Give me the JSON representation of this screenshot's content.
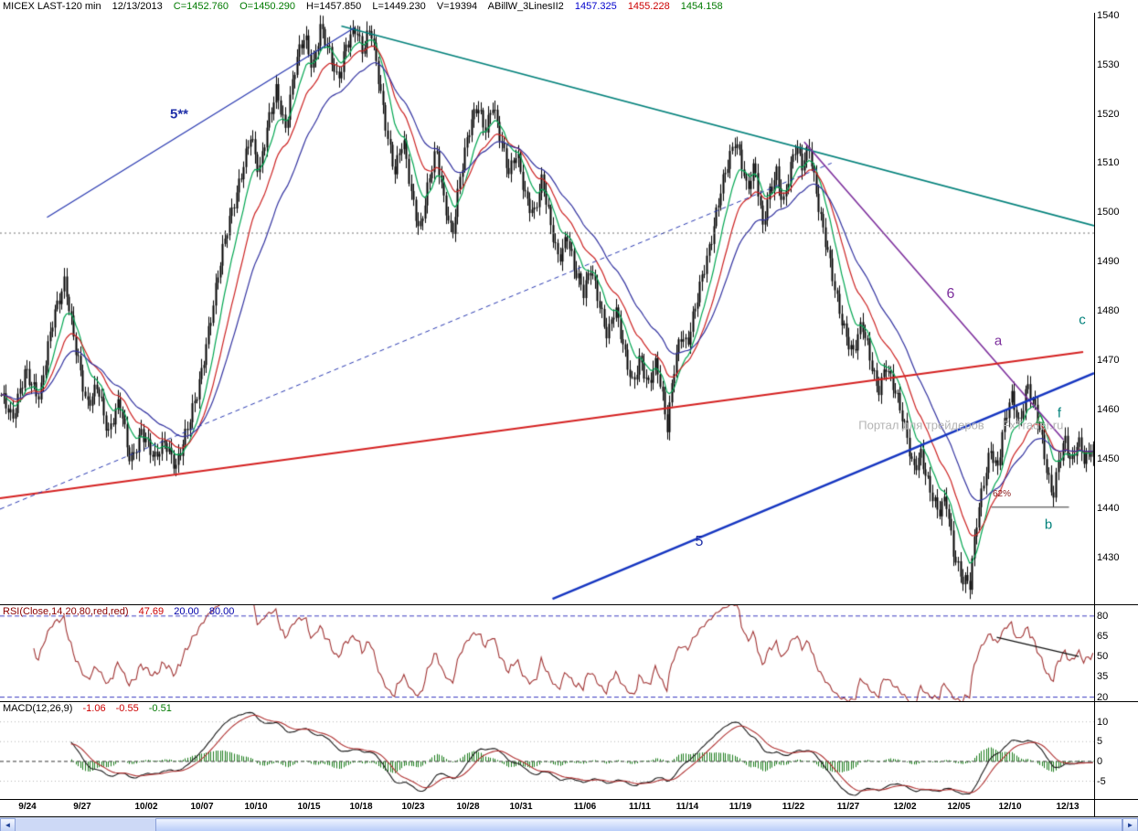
{
  "header": {
    "symbol": "MICEX LAST-120 min",
    "date": "12/13/2013",
    "c": "C=1452.760",
    "o": "O=1450.290",
    "h": "H=1457.850",
    "l": "L=1449.230",
    "v": "V=19394",
    "study": "ABillW_3LinesII2",
    "ma_blue": "1457.325",
    "ma_red": "1455.228",
    "ma_green": "1454.158"
  },
  "colors": {
    "candle": "#000000",
    "ma_fast": "#00a651",
    "ma_mid": "#cc2222",
    "ma_slow": "#3333a0",
    "rsi_line": "#a03333",
    "rsi_band": "#3a3ac0",
    "macd_line": "#1a1a1a",
    "macd_signal": "#b03333",
    "macd_hist": "#1e7d1e",
    "watermark": "#b4b4b4"
  },
  "rsi_panel": {
    "label": "RSI(Close,14,20,80,red,red)",
    "value": "47.69",
    "lower": "20.00",
    "upper": "80.00"
  },
  "macd_panel": {
    "label": "MACD(12,26,9)",
    "macd": "-1.06",
    "signal": "-0.55",
    "hist": "-0.51"
  },
  "chart_data": {
    "type": "candlestick",
    "title": "MICEX LAST-120 min",
    "ylim": [
      1420.5,
      1540.5
    ],
    "y_ticks": [
      1540,
      1530,
      1520,
      1510,
      1500,
      1490,
      1480,
      1470,
      1460,
      1450,
      1440,
      1430
    ],
    "x_ticks": [
      {
        "label": "9/24",
        "x": 0.025
      },
      {
        "label": "9/27",
        "x": 0.075
      },
      {
        "label": "10/02",
        "x": 0.134
      },
      {
        "label": "10/07",
        "x": 0.185
      },
      {
        "label": "10/10",
        "x": 0.234
      },
      {
        "label": "10/15",
        "x": 0.282
      },
      {
        "label": "10/18",
        "x": 0.33
      },
      {
        "label": "10/23",
        "x": 0.378
      },
      {
        "label": "10/28",
        "x": 0.428
      },
      {
        "label": "10/31",
        "x": 0.476
      },
      {
        "label": "11/06",
        "x": 0.535
      },
      {
        "label": "11/11",
        "x": 0.585
      },
      {
        "label": "11/14",
        "x": 0.628
      },
      {
        "label": "11/19",
        "x": 0.677
      },
      {
        "label": "11/22",
        "x": 0.725
      },
      {
        "label": "11/27",
        "x": 0.775
      },
      {
        "label": "12/02",
        "x": 0.827
      },
      {
        "label": "12/05",
        "x": 0.876
      },
      {
        "label": "12/10",
        "x": 0.923
      },
      {
        "label": "12/13",
        "x": 0.976
      }
    ],
    "bars": 470,
    "noise_amp": 1.3,
    "ma_periods": [
      10,
      20,
      35
    ],
    "close_waypoints": [
      [
        0.0,
        1463
      ],
      [
        0.01,
        1457
      ],
      [
        0.022,
        1469
      ],
      [
        0.035,
        1462
      ],
      [
        0.048,
        1479
      ],
      [
        0.058,
        1487
      ],
      [
        0.068,
        1472
      ],
      [
        0.078,
        1460
      ],
      [
        0.088,
        1466
      ],
      [
        0.098,
        1455
      ],
      [
        0.108,
        1461
      ],
      [
        0.118,
        1450
      ],
      [
        0.128,
        1456
      ],
      [
        0.14,
        1449
      ],
      [
        0.15,
        1454
      ],
      [
        0.16,
        1449
      ],
      [
        0.17,
        1455
      ],
      [
        0.18,
        1464
      ],
      [
        0.19,
        1477
      ],
      [
        0.2,
        1489
      ],
      [
        0.21,
        1499
      ],
      [
        0.22,
        1509
      ],
      [
        0.228,
        1516
      ],
      [
        0.236,
        1507
      ],
      [
        0.244,
        1518
      ],
      [
        0.252,
        1526
      ],
      [
        0.26,
        1517
      ],
      [
        0.27,
        1530
      ],
      [
        0.278,
        1536
      ],
      [
        0.285,
        1530
      ],
      [
        0.292,
        1538
      ],
      [
        0.3,
        1532
      ],
      [
        0.308,
        1526
      ],
      [
        0.316,
        1535
      ],
      [
        0.324,
        1538
      ],
      [
        0.331,
        1532
      ],
      [
        0.338,
        1537
      ],
      [
        0.346,
        1527
      ],
      [
        0.353,
        1517
      ],
      [
        0.36,
        1508
      ],
      [
        0.368,
        1514
      ],
      [
        0.375,
        1504
      ],
      [
        0.383,
        1497
      ],
      [
        0.39,
        1505
      ],
      [
        0.398,
        1512
      ],
      [
        0.405,
        1502
      ],
      [
        0.413,
        1496
      ],
      [
        0.42,
        1508
      ],
      [
        0.428,
        1516
      ],
      [
        0.436,
        1521
      ],
      [
        0.443,
        1517
      ],
      [
        0.45,
        1523
      ],
      [
        0.458,
        1514
      ],
      [
        0.465,
        1507
      ],
      [
        0.472,
        1512
      ],
      [
        0.48,
        1504
      ],
      [
        0.488,
        1500
      ],
      [
        0.495,
        1506
      ],
      [
        0.503,
        1497
      ],
      [
        0.51,
        1491
      ],
      [
        0.518,
        1496
      ],
      [
        0.525,
        1488
      ],
      [
        0.533,
        1483
      ],
      [
        0.54,
        1489
      ],
      [
        0.548,
        1482
      ],
      [
        0.555,
        1475
      ],
      [
        0.562,
        1480
      ],
      [
        0.57,
        1472
      ],
      [
        0.578,
        1466
      ],
      [
        0.585,
        1471
      ],
      [
        0.592,
        1464
      ],
      [
        0.6,
        1469
      ],
      [
        0.606,
        1462
      ],
      [
        0.61,
        1457
      ],
      [
        0.615,
        1468
      ],
      [
        0.622,
        1475
      ],
      [
        0.628,
        1472
      ],
      [
        0.635,
        1480
      ],
      [
        0.642,
        1488
      ],
      [
        0.65,
        1495
      ],
      [
        0.658,
        1503
      ],
      [
        0.665,
        1509
      ],
      [
        0.672,
        1515
      ],
      [
        0.677,
        1512
      ],
      [
        0.683,
        1505
      ],
      [
        0.69,
        1509
      ],
      [
        0.697,
        1496
      ],
      [
        0.703,
        1504
      ],
      [
        0.71,
        1509
      ],
      [
        0.716,
        1502
      ],
      [
        0.722,
        1508
      ],
      [
        0.728,
        1513
      ],
      [
        0.733,
        1509
      ],
      [
        0.74,
        1514
      ],
      [
        0.746,
        1505
      ],
      [
        0.752,
        1497
      ],
      [
        0.758,
        1490
      ],
      [
        0.764,
        1483
      ],
      [
        0.77,
        1478
      ],
      [
        0.78,
        1472
      ],
      [
        0.788,
        1477
      ],
      [
        0.795,
        1470
      ],
      [
        0.803,
        1464
      ],
      [
        0.81,
        1470
      ],
      [
        0.818,
        1464
      ],
      [
        0.827,
        1456
      ],
      [
        0.835,
        1448
      ],
      [
        0.842,
        1452
      ],
      [
        0.85,
        1444
      ],
      [
        0.858,
        1438
      ],
      [
        0.865,
        1442
      ],
      [
        0.872,
        1432
      ],
      [
        0.88,
        1426
      ],
      [
        0.887,
        1424
      ],
      [
        0.893,
        1436
      ],
      [
        0.9,
        1446
      ],
      [
        0.906,
        1453
      ],
      [
        0.912,
        1448
      ],
      [
        0.918,
        1456
      ],
      [
        0.925,
        1462
      ],
      [
        0.932,
        1457
      ],
      [
        0.94,
        1466
      ],
      [
        0.947,
        1460
      ],
      [
        0.953,
        1453
      ],
      [
        0.958,
        1446
      ],
      [
        0.963,
        1442
      ],
      [
        0.968,
        1450
      ],
      [
        0.974,
        1455
      ],
      [
        0.98,
        1449
      ],
      [
        0.986,
        1453
      ],
      [
        0.992,
        1449
      ],
      [
        1.0,
        1453
      ]
    ],
    "trendlines": [
      {
        "name": "descending-resistance-teal",
        "x1": 0.312,
        "p1": 1537.8,
        "x2": 1.0,
        "p2": 1497.3,
        "color": "#00807a",
        "w": 1.6
      },
      {
        "name": "wave-6-trendline-purple",
        "x1": 0.735,
        "p1": 1514.3,
        "x2": 0.972,
        "p2": 1453.9,
        "color": "#7c2e9c",
        "w": 1.6
      },
      {
        "name": "long-support-red",
        "x1": 0.0,
        "p1": 1442,
        "x2": 0.99,
        "p2": 1471.7,
        "color": "#d42020",
        "w": 2
      },
      {
        "name": "wave-5-support-blue",
        "x1": 0.505,
        "p1": 1421.6,
        "x2": 1.0,
        "p2": 1467.4,
        "color": "#1535c0",
        "w": 2.4
      },
      {
        "name": "dashed-channel-navy",
        "x1": 0.0,
        "p1": 1439.8,
        "x2": 0.76,
        "p2": 1510,
        "color": "#2838b0",
        "w": 1,
        "dash": [
          5,
          4
        ]
      },
      {
        "name": "upper-left-trendline-navy",
        "x1": 0.043,
        "p1": 1499,
        "x2": 0.324,
        "p2": 1537.5,
        "color": "#2838b0",
        "w": 1.2
      },
      {
        "name": "dotted-level-line",
        "x1": 0.0,
        "p1": 1495.8,
        "x2": 1.0,
        "p2": 1495.8,
        "color": "#707070",
        "w": 1,
        "dash": [
          2,
          3
        ]
      },
      {
        "name": "fib-62-level-line",
        "x1": 0.906,
        "p1": 1440.2,
        "x2": 0.977,
        "p2": 1440.2,
        "color": "#303030",
        "w": 1
      }
    ],
    "labels": [
      {
        "name": "wave-5-double-star-label",
        "text": "5**",
        "x": 0.164,
        "p": 1519.9,
        "color": "#2030a8",
        "size": 15,
        "bold": true
      },
      {
        "name": "wave-6-label",
        "text": "6",
        "x": 0.869,
        "p": 1483.4,
        "color": "#7c2e9c",
        "size": 16,
        "bold": false
      },
      {
        "name": "wave-a-label",
        "text": "a",
        "x": 0.912,
        "p": 1473.9,
        "color": "#7c2e9c",
        "size": 15,
        "bold": false
      },
      {
        "name": "wave-c-label",
        "text": "c",
        "x": 0.989,
        "p": 1478.1,
        "color": "#00807a",
        "size": 15,
        "bold": false
      },
      {
        "name": "wave-f-label",
        "text": "f",
        "x": 0.968,
        "p": 1459.3,
        "color": "#00807a",
        "size": 15,
        "bold": false
      },
      {
        "name": "wave-b-label",
        "text": "b",
        "x": 0.958,
        "p": 1436.7,
        "color": "#00807a",
        "size": 15,
        "bold": false
      },
      {
        "name": "wave-5-label",
        "text": "5",
        "x": 0.639,
        "p": 1433.1,
        "color": "#2030a8",
        "size": 16,
        "bold": false
      },
      {
        "name": "fib-62-percent-label",
        "text": "62%",
        "x": 0.916,
        "p": 1442.8,
        "color": "#8b1a1a",
        "size": 10,
        "bold": false
      },
      {
        "name": "watermark-text",
        "text": "Портал для трейдеров",
        "x": 0.842,
        "p": 1456.9,
        "color": "#b4b4b4",
        "size": 13,
        "bold": false
      },
      {
        "name": "watermark-site",
        "text": "FxTrader.ru",
        "x": 0.944,
        "p": 1456.9,
        "color": "#b4b4b4",
        "size": 13,
        "bold": false
      },
      {
        "name": "triangle-marker",
        "text": "△",
        "x": 0.951,
        "p": 1458.3,
        "color": "#2f9e4f",
        "size": 12,
        "bold": true
      }
    ],
    "rsi": {
      "period": 14,
      "ylim": [
        17,
        88
      ],
      "ticks": [
        80,
        65,
        50,
        35,
        20
      ],
      "bands": [
        80,
        20
      ],
      "trendline": {
        "x1": 0.911,
        "v1": 64.3,
        "x2": 0.986,
        "v2": 50.1
      }
    },
    "macd": {
      "fast": 12,
      "slow": 26,
      "signal": 9,
      "ylim": [
        -9.5,
        15
      ],
      "ticks": [
        10,
        5,
        0,
        -5
      ]
    }
  }
}
